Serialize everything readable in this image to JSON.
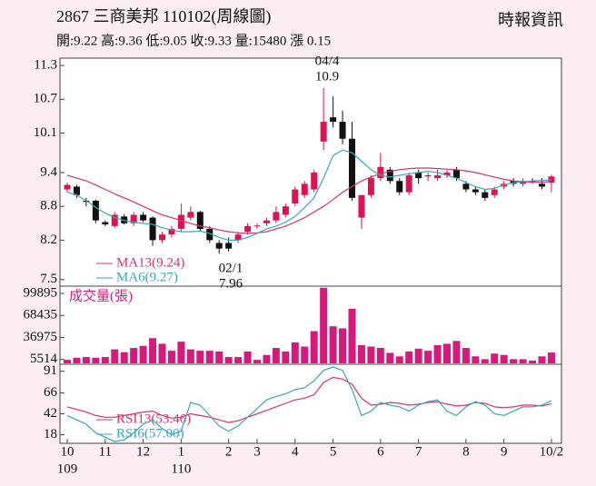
{
  "header": {
    "title": "2867  三商美邦 110102(周線圖)",
    "source": "時報資訊",
    "summary": "開:9.22 高:9.36 低:9.05 收:9.33 量:15480 漲 0.15"
  },
  "chart_data": [
    {
      "type": "candlestick",
      "up_color": "#e0114f",
      "down_color": "#111111",
      "categories": [
        "10",
        null,
        null,
        null,
        "11",
        null,
        null,
        null,
        "12",
        null,
        null,
        null,
        "1",
        null,
        null,
        null,
        null,
        "2",
        null,
        null,
        "3",
        null,
        null,
        null,
        "4",
        null,
        null,
        null,
        "5",
        null,
        null,
        null,
        null,
        "6",
        null,
        null,
        null,
        "7",
        null,
        null,
        null,
        null,
        "8",
        null,
        null,
        null,
        "9",
        null,
        null,
        null,
        null,
        "10/2"
      ],
      "years": [
        "109",
        null,
        null,
        null,
        null,
        null,
        null,
        null,
        null,
        null,
        null,
        null,
        "110",
        null,
        null,
        null,
        null,
        null,
        null,
        null,
        null,
        null,
        null,
        null,
        null,
        null,
        null,
        null,
        null,
        null,
        null,
        null,
        null,
        null,
        null,
        null,
        null,
        null,
        null,
        null,
        null,
        null,
        null,
        null,
        null,
        null,
        null,
        null,
        null,
        null,
        null,
        null
      ],
      "open": [
        9.1,
        9.15,
        8.9,
        8.9,
        8.52,
        8.45,
        8.62,
        8.5,
        8.65,
        8.6,
        8.2,
        8.3,
        8.4,
        8.6,
        8.7,
        8.4,
        8.15,
        8.15,
        8.2,
        8.35,
        8.45,
        8.5,
        8.55,
        8.65,
        8.85,
        9.0,
        9.1,
        9.95,
        10.38,
        10.3,
        10.0,
        8.6,
        9.0,
        9.3,
        9.45,
        9.25,
        9.05,
        9.4,
        9.33,
        9.3,
        9.35,
        9.45,
        9.2,
        9.1,
        9.05,
        9.0,
        9.15,
        9.25,
        9.2,
        9.25,
        9.2,
        9.22
      ],
      "high": [
        9.22,
        9.18,
        8.95,
        8.92,
        8.55,
        8.7,
        8.66,
        8.7,
        8.7,
        8.62,
        8.35,
        8.45,
        8.85,
        8.8,
        8.72,
        8.45,
        8.2,
        8.25,
        8.35,
        8.5,
        8.5,
        8.6,
        8.8,
        8.85,
        9.15,
        9.25,
        9.45,
        10.9,
        10.75,
        10.5,
        10.3,
        9.0,
        9.35,
        9.75,
        9.5,
        9.3,
        9.4,
        9.45,
        9.4,
        9.45,
        9.45,
        9.5,
        9.25,
        9.15,
        9.1,
        9.15,
        9.25,
        9.3,
        9.3,
        9.3,
        9.3,
        9.36
      ],
      "low": [
        9.05,
        8.95,
        8.8,
        8.5,
        8.45,
        8.42,
        8.48,
        8.45,
        8.52,
        8.1,
        8.15,
        8.25,
        8.35,
        8.55,
        8.35,
        8.15,
        7.96,
        8.0,
        8.15,
        8.3,
        8.4,
        8.45,
        8.5,
        8.6,
        8.8,
        8.95,
        9.05,
        9.8,
        10.2,
        9.9,
        8.9,
        8.4,
        8.95,
        9.25,
        9.2,
        9.0,
        9.0,
        9.2,
        9.25,
        9.25,
        9.3,
        9.25,
        9.05,
        9.0,
        8.9,
        8.95,
        9.1,
        9.15,
        9.15,
        9.2,
        9.1,
        9.05
      ],
      "close": [
        9.18,
        9.0,
        8.88,
        8.55,
        8.48,
        8.65,
        8.5,
        8.65,
        8.55,
        8.2,
        8.3,
        8.4,
        8.65,
        8.7,
        8.4,
        8.2,
        8.05,
        8.05,
        8.3,
        8.45,
        8.46,
        8.55,
        8.7,
        8.8,
        9.1,
        9.2,
        9.4,
        10.3,
        10.3,
        10.0,
        8.95,
        9.0,
        9.3,
        9.5,
        9.25,
        9.05,
        9.35,
        9.3,
        9.35,
        9.35,
        9.4,
        9.3,
        9.1,
        9.05,
        8.95,
        9.1,
        9.2,
        9.2,
        9.25,
        9.24,
        9.15,
        9.33
      ],
      "series": [
        {
          "name": "MA13(9.24)",
          "color": "#d6336c",
          "values": [
            9.35,
            9.3,
            9.25,
            9.18,
            9.1,
            9.02,
            8.95,
            8.88,
            8.8,
            8.72,
            8.65,
            8.6,
            8.55,
            8.5,
            8.45,
            8.42,
            8.38,
            8.35,
            8.33,
            8.32,
            8.33,
            8.35,
            8.4,
            8.45,
            8.52,
            8.6,
            8.7,
            8.8,
            8.92,
            9.05,
            9.15,
            9.25,
            9.32,
            9.38,
            9.42,
            9.45,
            9.47,
            9.48,
            9.48,
            9.47,
            9.46,
            9.45,
            9.43,
            9.4,
            9.36,
            9.32,
            9.28,
            9.25,
            9.24,
            9.23,
            9.23,
            9.24
          ]
        },
        {
          "name": "MA6(9.27)",
          "color": "#3aa6b9",
          "values": [
            9.05,
            9.0,
            8.9,
            8.78,
            8.68,
            8.6,
            8.55,
            8.52,
            8.5,
            8.48,
            8.42,
            8.38,
            8.35,
            8.35,
            8.36,
            8.32,
            8.25,
            8.2,
            8.2,
            8.25,
            8.32,
            8.4,
            8.45,
            8.52,
            8.62,
            8.78,
            8.95,
            9.3,
            9.7,
            9.8,
            9.75,
            9.6,
            9.45,
            9.35,
            9.32,
            9.35,
            9.38,
            9.4,
            9.42,
            9.4,
            9.35,
            9.3,
            9.22,
            9.15,
            9.1,
            9.12,
            9.18,
            9.22,
            9.24,
            9.25,
            9.26,
            9.27
          ]
        }
      ],
      "ylim": [
        7.4,
        11.43
      ],
      "yticks": [
        11.3,
        10.7,
        10.1,
        9.4,
        8.8,
        8.2,
        7.5
      ],
      "annotations": [
        "04/4",
        "10.9",
        "02/1",
        "7.96"
      ]
    },
    {
      "type": "bar",
      "title": "成交量(張)",
      "color": "#d6197a",
      "values": [
        5000,
        8000,
        9000,
        8000,
        9000,
        20000,
        16000,
        22000,
        25000,
        36000,
        28000,
        18000,
        31000,
        20000,
        18000,
        18000,
        17000,
        9000,
        9000,
        17000,
        5000,
        12000,
        22000,
        17000,
        30000,
        24000,
        46000,
        108000,
        53000,
        50000,
        78000,
        26000,
        24000,
        22000,
        15000,
        10000,
        17000,
        21000,
        18000,
        26000,
        28000,
        32000,
        22000,
        10000,
        6000,
        14000,
        12000,
        6000,
        6000,
        4000,
        10000,
        15480
      ],
      "ylim": [
        0,
        109000
      ],
      "yticks": [
        99895,
        68435,
        36975,
        5514
      ]
    },
    {
      "type": "line",
      "series": [
        {
          "name": "RSI13(53.46)",
          "color": "#d6336c",
          "values": [
            50,
            47,
            44,
            40,
            38,
            38,
            40,
            42,
            44,
            45,
            40,
            37,
            38,
            42,
            40,
            38,
            35,
            32,
            34,
            38,
            42,
            46,
            50,
            54,
            58,
            60,
            64,
            78,
            84,
            82,
            76,
            60,
            52,
            53,
            55,
            54,
            52,
            53,
            55,
            56,
            53,
            51,
            52,
            55,
            54,
            50,
            49,
            50,
            52,
            52,
            51,
            53.46
          ]
        },
        {
          "name": "RSI6(57.00)",
          "color": "#3aa6b9",
          "values": [
            40,
            35,
            30,
            20,
            15,
            10,
            12,
            20,
            30,
            35,
            25,
            18,
            22,
            55,
            52,
            40,
            28,
            22,
            28,
            38,
            48,
            58,
            62,
            65,
            70,
            72,
            80,
            92,
            96,
            92,
            70,
            40,
            45,
            55,
            52,
            50,
            45,
            52,
            56,
            58,
            45,
            40,
            50,
            56,
            52,
            42,
            40,
            45,
            50,
            50,
            52,
            57
          ]
        }
      ],
      "ylim": [
        8,
        98
      ],
      "yticks": [
        91,
        66,
        42,
        18
      ]
    }
  ]
}
